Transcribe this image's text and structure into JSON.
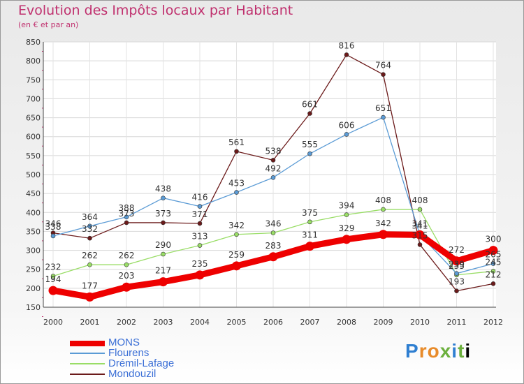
{
  "chart_data": {
    "type": "line",
    "title": "Evolution des Impôts locaux par Habitant",
    "subtitle": "(en € et par an)",
    "x": [
      "2000",
      "2001",
      "2002",
      "2003",
      "2004",
      "2005",
      "2006",
      "2007",
      "2008",
      "2009",
      "2010",
      "2011",
      "2012"
    ],
    "ylim": [
      150,
      850
    ],
    "yticks": [
      150,
      200,
      250,
      300,
      350,
      400,
      450,
      500,
      550,
      600,
      650,
      700,
      750,
      800,
      850
    ],
    "series": [
      {
        "name": "MONS",
        "color": "#ee0000",
        "values": [
          194,
          177,
          203,
          217,
          235,
          259,
          283,
          311,
          329,
          342,
          341,
          272,
          300
        ]
      },
      {
        "name": "Flourens",
        "color": "#5b9bd5",
        "values": [
          338,
          364,
          388,
          438,
          416,
          453,
          492,
          555,
          606,
          651,
          341,
          239,
          265
        ]
      },
      {
        "name": "Drémil-Lafage",
        "color": "#99dd66",
        "values": [
          232,
          262,
          262,
          290,
          313,
          342,
          346,
          375,
          394,
          408,
          408,
          235,
          245
        ]
      },
      {
        "name": "Mondouzil",
        "color": "#6b1a1a",
        "values": [
          346,
          332,
          373,
          373,
          371,
          561,
          538,
          661,
          816,
          764,
          315,
          193,
          212
        ]
      }
    ]
  },
  "logo": {
    "letters": [
      "P",
      "r",
      "o",
      "x",
      "i",
      "t",
      "i"
    ]
  }
}
